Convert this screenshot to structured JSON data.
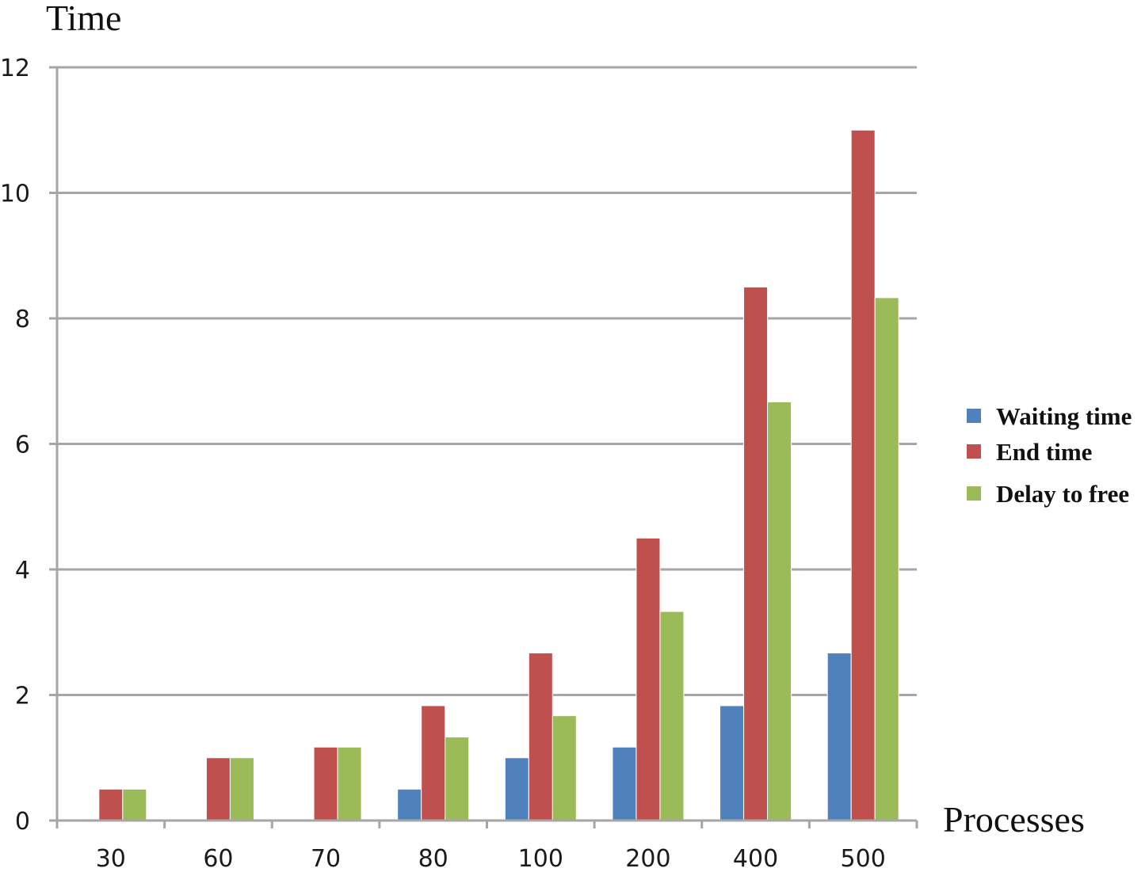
{
  "chart_data": {
    "type": "bar",
    "ylabel": "Time",
    "xlabel": "Processes",
    "categories": [
      "30",
      "60",
      "70",
      "80",
      "100",
      "200",
      "400",
      "500"
    ],
    "ylim": [
      0,
      12
    ],
    "yticks": [
      0,
      2,
      4,
      6,
      8,
      10,
      12
    ],
    "grid": true,
    "legend": "right",
    "series": [
      {
        "name": "Waiting time",
        "color": "#4f81bd",
        "values": [
          0,
          0,
          0,
          0.5,
          1.0,
          1.17,
          1.83,
          2.67
        ]
      },
      {
        "name": "End time",
        "color": "#c0504d",
        "values": [
          0.5,
          1.0,
          1.17,
          1.83,
          2.67,
          4.5,
          8.5,
          11.0
        ]
      },
      {
        "name": "Delay to free",
        "color": "#9bbb59",
        "values": [
          0.5,
          1.0,
          1.17,
          1.33,
          1.67,
          3.33,
          6.67,
          8.33
        ]
      }
    ]
  }
}
